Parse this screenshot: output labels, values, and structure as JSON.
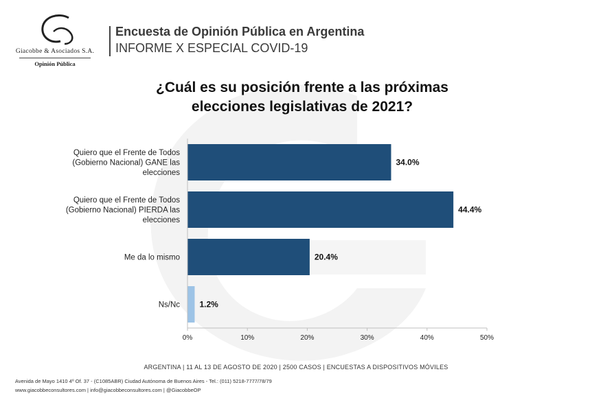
{
  "header": {
    "company": "Giacobbe & Asociados S.A.",
    "company_sub": "Opinión Pública",
    "title": "Encuesta de Opinión Pública en Argentina",
    "subtitle": "INFORME X ESPECIAL COVID-19"
  },
  "colors": {
    "bar_primary": "#1f4e79",
    "bar_secondary": "#9dc3e6"
  },
  "chart_data": {
    "type": "bar",
    "orientation": "horizontal",
    "title": "¿Cuál es su posición frente a las próximas elecciones legislativas de 2021?",
    "title_lines": [
      "¿Cuál es su posición frente a las próximas",
      "elecciones legislativas de 2021?"
    ],
    "categories": [
      [
        "Quiero que el Frente de Todos",
        "(Gobierno Nacional) GANE las",
        "elecciones"
      ],
      [
        "Quiero que el Frente de Todos",
        "(Gobierno Nacional) PIERDA las",
        "elecciones"
      ],
      [
        "Me da lo mismo"
      ],
      [
        "Ns/Nc"
      ]
    ],
    "values": [
      34.0,
      44.4,
      20.4,
      1.2
    ],
    "value_labels": [
      "34.0%",
      "44.4%",
      "20.4%",
      "1.2%"
    ],
    "xlim": [
      0,
      50
    ],
    "xticks": [
      0,
      10,
      20,
      30,
      40,
      50
    ],
    "xtick_labels": [
      "0%",
      "10%",
      "20%",
      "30%",
      "40%",
      "50%"
    ],
    "grid": false,
    "legend": "none"
  },
  "footer": {
    "survey_info": "ARGENTINA | 11 AL 13 DE AGOSTO DE 2020 | 2500 CASOS | ENCUESTAS A DISPOSITIVOS MÓVILES",
    "address": "Avenida de Mayo 1410 4º Of. 37 - (C1085ABR) Ciudad Autónoma de Buenos Aires - Tel.: (011) 5218-7777/78/79",
    "contacts": "www.giacobbeconsultores.com | info@giacobbeconsultores.com | @GiacobbeOP"
  }
}
